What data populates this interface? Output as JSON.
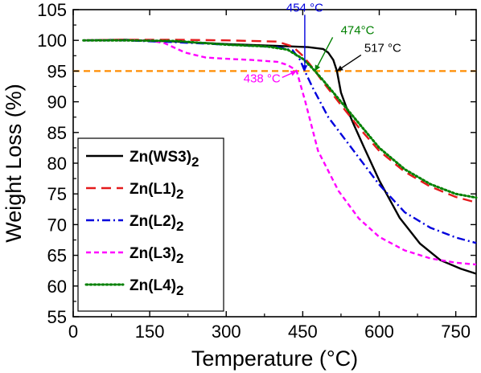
{
  "chart_data": {
    "type": "line",
    "title": "",
    "xlabel": "Temperature (°C)",
    "ylabel": "Weight Loss (%)",
    "xlim": [
      0,
      790
    ],
    "ylim": [
      55,
      105
    ],
    "xticks": [
      0,
      150,
      300,
      450,
      600,
      750
    ],
    "yticks": [
      55,
      60,
      65,
      70,
      75,
      80,
      85,
      90,
      95,
      100,
      105
    ],
    "grid": false,
    "legend_position": "bottom-left",
    "reference_line": {
      "y": 95,
      "color": "#FF8C00",
      "style": "dashed"
    },
    "series": [
      {
        "name": "Zn(WS3)",
        "subscript": "2",
        "color": "#000000",
        "dash": "solid",
        "x": [
          20,
          100,
          200,
          300,
          400,
          460,
          490,
          500,
          510,
          517,
          525,
          535,
          550,
          570,
          600,
          640,
          680,
          720,
          760,
          790
        ],
        "y": [
          100.0,
          100.1,
          99.8,
          99.4,
          99.1,
          98.9,
          98.6,
          98.0,
          96.8,
          95.0,
          91.5,
          89.2,
          86.3,
          82.6,
          77.2,
          71.1,
          66.9,
          64.2,
          62.8,
          62.0
        ]
      },
      {
        "name": "Zn(L1)",
        "subscript": "2",
        "color": "#E41A1C",
        "dash": "dashed",
        "x": [
          20,
          100,
          200,
          300,
          400,
          430,
          450,
          465,
          474,
          490,
          520,
          560,
          600,
          650,
          700,
          750,
          790
        ],
        "y": [
          100.0,
          100.1,
          100.1,
          100.0,
          99.8,
          99.0,
          97.5,
          96.0,
          95.0,
          93.2,
          90.0,
          85.8,
          82.0,
          78.6,
          76.2,
          74.5,
          73.6
        ]
      },
      {
        "name": "Zn(L2)",
        "subscript": "2",
        "color": "#0000DD",
        "dash": "dashdot",
        "x": [
          20,
          100,
          200,
          300,
          400,
          430,
          445,
          454,
          470,
          500,
          550,
          600,
          650,
          700,
          750,
          790
        ],
        "y": [
          100.0,
          100.0,
          99.7,
          99.3,
          98.9,
          98.4,
          96.8,
          95.0,
          92.2,
          87.5,
          82.0,
          76.5,
          72.0,
          69.5,
          67.9,
          67.0
        ]
      },
      {
        "name": "Zn(L3)",
        "subscript": "2",
        "color": "#FF00FF",
        "dash": "dashed-short",
        "x": [
          20,
          150,
          180,
          220,
          260,
          300,
          350,
          400,
          420,
          430,
          438,
          455,
          480,
          520,
          560,
          600,
          650,
          700,
          750,
          790
        ],
        "y": [
          100.0,
          100.0,
          99.5,
          98.0,
          97.2,
          97.0,
          96.8,
          96.5,
          96.0,
          95.5,
          95.0,
          90.0,
          82.0,
          75.5,
          71.0,
          68.0,
          65.8,
          64.5,
          63.8,
          63.5
        ]
      },
      {
        "name": "Zn(L4)",
        "subscript": "2",
        "color": "#008000",
        "dash": "dotted",
        "x": [
          20,
          100,
          200,
          300,
          380,
          420,
          450,
          465,
          474,
          490,
          520,
          560,
          600,
          650,
          700,
          750,
          790
        ],
        "y": [
          100.0,
          100.0,
          99.9,
          99.3,
          99.0,
          98.5,
          97.0,
          95.8,
          95.0,
          93.5,
          90.5,
          86.5,
          82.5,
          79.0,
          76.6,
          75.0,
          74.4
        ]
      }
    ],
    "annotations": [
      {
        "text": "454 °C",
        "color": "#0000DD",
        "x": 454,
        "y": 95
      },
      {
        "text": "474°C",
        "color": "#008000",
        "x": 474,
        "y": 95
      },
      {
        "text": "517 °C",
        "color": "#000000",
        "x": 517,
        "y": 95
      },
      {
        "text": "438 °C",
        "color": "#FF00FF",
        "x": 438,
        "y": 95
      }
    ]
  }
}
